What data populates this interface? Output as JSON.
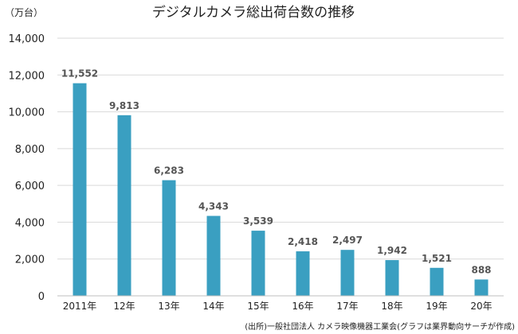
{
  "chart_data": {
    "type": "bar",
    "title": "デジタルカメラ総出荷台数の推移",
    "unit_label": "（万台）",
    "categories": [
      "2011年",
      "12年",
      "13年",
      "14年",
      "15年",
      "16年",
      "17年",
      "18年",
      "19年",
      "20年"
    ],
    "values": [
      11552,
      9813,
      6283,
      4343,
      3539,
      2418,
      2497,
      1942,
      1521,
      888
    ],
    "value_labels": [
      "11,552",
      "9,813",
      "6,283",
      "4,343",
      "3,539",
      "2,418",
      "2,497",
      "1,942",
      "1,521",
      "888"
    ],
    "ylim": [
      0,
      14000
    ],
    "yticks": [
      0,
      2000,
      4000,
      6000,
      8000,
      10000,
      12000,
      14000
    ],
    "ytick_labels": [
      "0",
      "2,000",
      "4,000",
      "6,000",
      "8,000",
      "10,000",
      "12,000",
      "14,000"
    ],
    "grid": true,
    "bar_color": "#3a9fc1",
    "source": "(出所)一般社団法人 カメラ映像機器工業会(グラフは業界動向サーチが作成)"
  }
}
